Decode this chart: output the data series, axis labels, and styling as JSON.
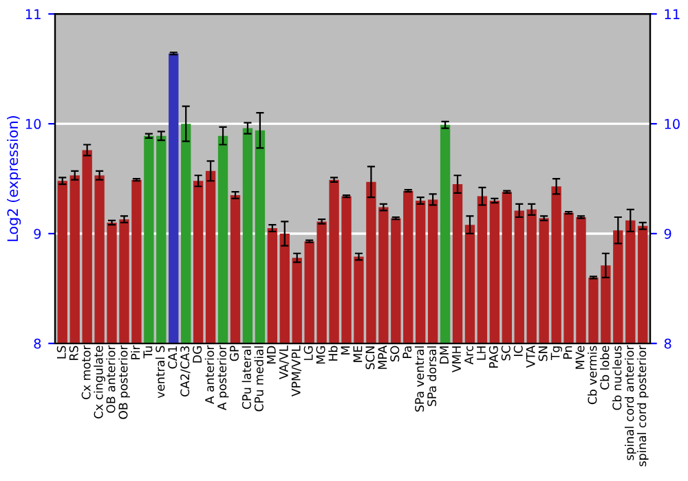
{
  "chart_data": {
    "type": "bar",
    "ylabel": "Log2 (expression)",
    "categories": [
      "LS",
      "RS",
      "Cx motor",
      "Cx cingulate",
      "OB anterior",
      "OB posterior",
      "Pir",
      "Tu",
      "ventral S",
      "CA1",
      "CA2/CA3",
      "DG",
      "A anterior",
      "A posterior",
      "GP",
      "CPu lateral",
      "CPu medial",
      "MD",
      "VA/VL",
      "VPM/VPL",
      "LG",
      "MG",
      "Hb",
      "M",
      "ME",
      "SCN",
      "MPA",
      "SO",
      "Pa",
      "SPa ventral",
      "SPa dorsal",
      "DM",
      "VMH",
      "Arc",
      "LH",
      "PAG",
      "SC",
      "IC",
      "VTA",
      "SN",
      "Tg",
      "Pn",
      "MVe",
      "Cb vermis",
      "Cb lobe",
      "Cb nucleus",
      "spinal cord anterior",
      "spinal cord posterior"
    ],
    "values": [
      9.48,
      9.53,
      9.76,
      9.53,
      9.1,
      9.13,
      9.49,
      9.89,
      9.89,
      10.64,
      10.0,
      9.48,
      9.57,
      9.89,
      9.35,
      9.96,
      9.94,
      9.05,
      9.0,
      8.78,
      8.93,
      9.11,
      9.49,
      9.34,
      8.79,
      9.47,
      9.24,
      9.14,
      9.39,
      9.3,
      9.31,
      9.99,
      9.45,
      9.08,
      9.34,
      9.3,
      9.38,
      9.21,
      9.22,
      9.14,
      9.43,
      9.19,
      9.15,
      8.6,
      8.71,
      9.03,
      9.12,
      9.07
    ],
    "errors": [
      0.03,
      0.04,
      0.05,
      0.04,
      0.02,
      0.03,
      0.01,
      0.02,
      0.04,
      0.01,
      0.16,
      0.05,
      0.09,
      0.08,
      0.03,
      0.05,
      0.16,
      0.03,
      0.11,
      0.04,
      0.01,
      0.02,
      0.02,
      0.01,
      0.03,
      0.14,
      0.03,
      0.01,
      0.01,
      0.03,
      0.05,
      0.03,
      0.08,
      0.08,
      0.08,
      0.02,
      0.01,
      0.06,
      0.05,
      0.02,
      0.07,
      0.01,
      0.01,
      0.01,
      0.11,
      0.12,
      0.1,
      0.03
    ],
    "colors": [
      "#b22222",
      "#b22222",
      "#b22222",
      "#b22222",
      "#b22222",
      "#b22222",
      "#b22222",
      "#2e9e2e",
      "#2e9e2e",
      "#3333bb",
      "#2e9e2e",
      "#b22222",
      "#b22222",
      "#2e9e2e",
      "#b22222",
      "#2e9e2e",
      "#2e9e2e",
      "#b22222",
      "#b22222",
      "#b22222",
      "#b22222",
      "#b22222",
      "#b22222",
      "#b22222",
      "#b22222",
      "#b22222",
      "#b22222",
      "#b22222",
      "#b22222",
      "#b22222",
      "#b22222",
      "#2e9e2e",
      "#b22222",
      "#b22222",
      "#b22222",
      "#b22222",
      "#b22222",
      "#b22222",
      "#b22222",
      "#b22222",
      "#b22222",
      "#b22222",
      "#b22222",
      "#b22222",
      "#b22222",
      "#b22222",
      "#b22222",
      "#b22222"
    ],
    "ylim": [
      8,
      11
    ],
    "yticks": [
      8,
      9,
      10,
      11
    ],
    "y2lim": [
      8,
      11
    ],
    "y2ticks": [
      8,
      9,
      10,
      11
    ],
    "grid": "y"
  }
}
